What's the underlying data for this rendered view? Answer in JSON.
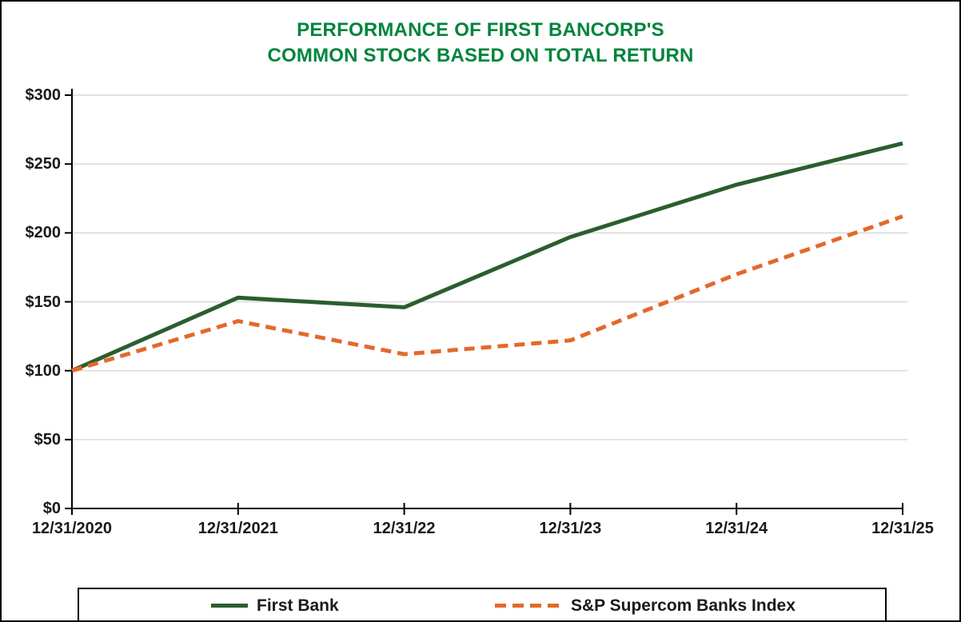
{
  "title": {
    "line1": "PERFORMANCE OF FIRST BANCORP'S",
    "line2": "COMMON STOCK BASED ON TOTAL RETURN"
  },
  "colors": {
    "title_green": "#00843d",
    "first_bank_line": "#2b5d2e",
    "sp_index_line": "#e2692c",
    "gridline": "#d9d9d9",
    "axis": "#000000",
    "label_text": "#1a1a1a"
  },
  "chart_data": {
    "type": "line",
    "title": "PERFORMANCE OF FIRST BANCORP'S COMMON STOCK BASED ON TOTAL RETURN",
    "xlabel": "",
    "ylabel": "",
    "x_labels": [
      "12/31/2020",
      "12/31/2021",
      "12/31/22",
      "12/31/23",
      "12/31/24",
      "12/31/25"
    ],
    "y_tick_labels": [
      "$300",
      "$250",
      "$200",
      "$150",
      "$100",
      "$50",
      "$0"
    ],
    "y_ticks": [
      300,
      250,
      200,
      150,
      100,
      50,
      0
    ],
    "ylim": [
      0,
      300
    ],
    "grid": true,
    "legend_position": "bottom",
    "series": [
      {
        "name": "First Bank",
        "style": "solid",
        "color": "#2b5d2e",
        "values": [
          100,
          153,
          146,
          197,
          235,
          265
        ]
      },
      {
        "name": "S&P Supercom Banks Index",
        "style": "dashed",
        "color": "#e2692c",
        "values": [
          100,
          136,
          112,
          122,
          170,
          212
        ]
      }
    ]
  }
}
